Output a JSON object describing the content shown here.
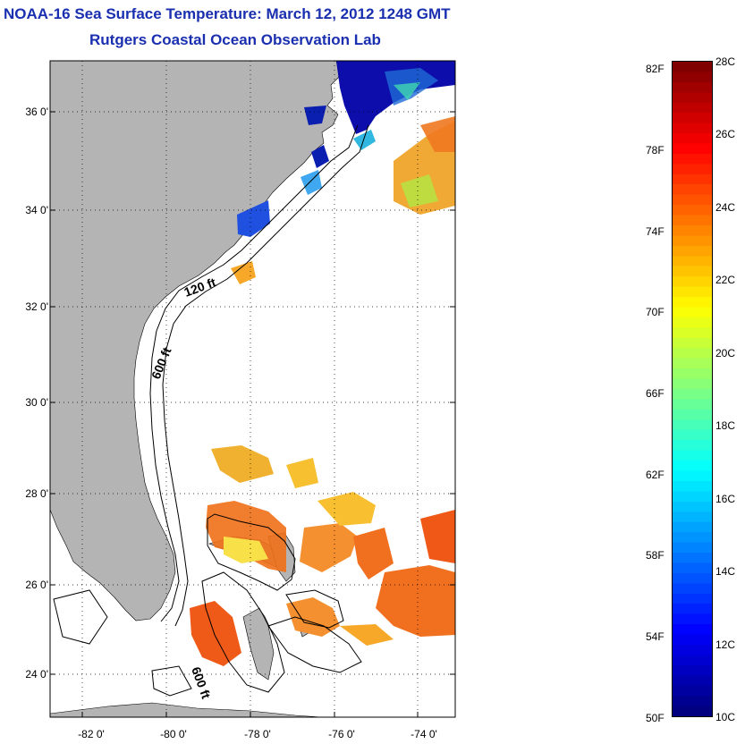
{
  "title": "NOAA-16 Sea Surface Temperature:  March 12, 2012 1248 GMT",
  "subtitle": "Rutgers Coastal Ocean Observation Lab",
  "map": {
    "lon_range": [
      -83,
      -73
    ],
    "lat_range": [
      23,
      37
    ],
    "lat_ticks": [
      {
        "value": 24,
        "label": "24 0'"
      },
      {
        "value": 26,
        "label": "26 0'"
      },
      {
        "value": 28,
        "label": "28 0'"
      },
      {
        "value": 30,
        "label": "30 0'"
      },
      {
        "value": 32,
        "label": "32 0'"
      },
      {
        "value": 34,
        "label": "34 0'"
      },
      {
        "value": 36,
        "label": "36 0'"
      }
    ],
    "lon_ticks": [
      {
        "value": -82,
        "label": "-82 0'"
      },
      {
        "value": -80,
        "label": "-80 0'"
      },
      {
        "value": -78,
        "label": "-78 0'"
      },
      {
        "value": -76,
        "label": "-76 0'"
      },
      {
        "value": -74,
        "label": "-74 0'"
      }
    ],
    "contour_labels": [
      {
        "text": "120 ft"
      },
      {
        "text": "600 ft"
      },
      {
        "text": "600 ft"
      }
    ],
    "colors": {
      "land": "#b4b4b4",
      "ocean": "#ffffff",
      "grid": "#000000"
    }
  },
  "colorbar": {
    "fahrenheit_labels": [
      "82F",
      "78F",
      "74F",
      "70F",
      "66F",
      "62F",
      "58F",
      "54F",
      "50F"
    ],
    "celsius_labels": [
      "28C",
      "26C",
      "24C",
      "22C",
      "20C",
      "18C",
      "16C",
      "14C",
      "12C",
      "10C"
    ],
    "range_c": [
      10,
      28
    ],
    "range_f": [
      50,
      82.4
    ],
    "colormap": "jet"
  }
}
